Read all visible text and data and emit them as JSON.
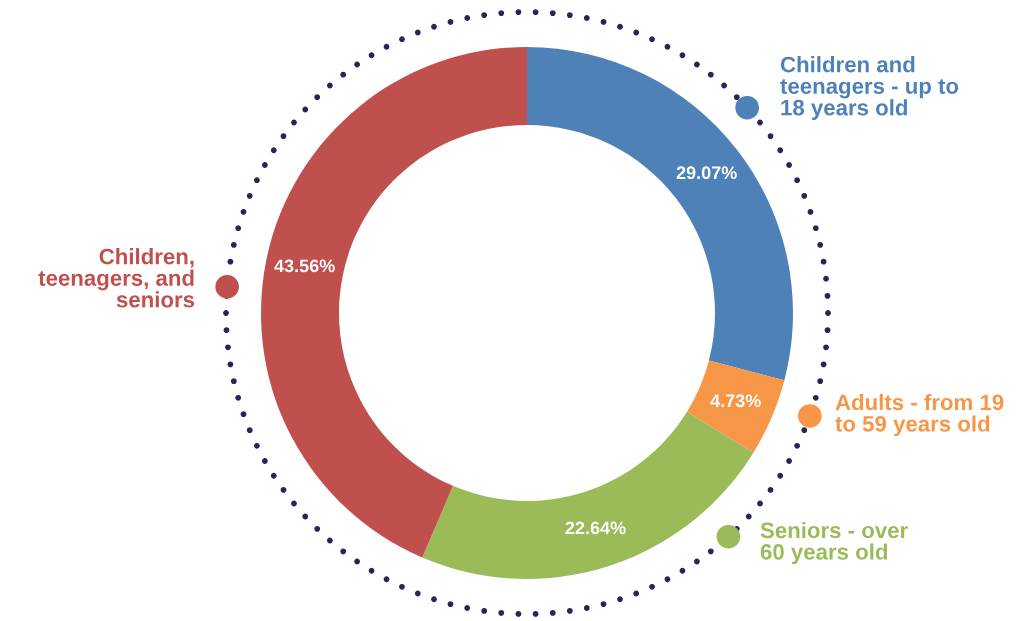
{
  "chart_data": {
    "type": "donut",
    "categories": [
      "Children and teenagers - up to 18 years old",
      "Adults - from 19 to 59 years old",
      "Seniors - over 60 years old",
      "Children, teenagers, and seniors"
    ],
    "values": [
      29.07,
      4.73,
      22.64,
      43.56
    ],
    "value_labels": [
      "29.07%",
      "4.73%",
      "22.64%",
      "43.56%"
    ],
    "colors": [
      "#4f81b9",
      "#f79646",
      "#9bbb59",
      "#c0504d"
    ],
    "legend": "right"
  }
}
